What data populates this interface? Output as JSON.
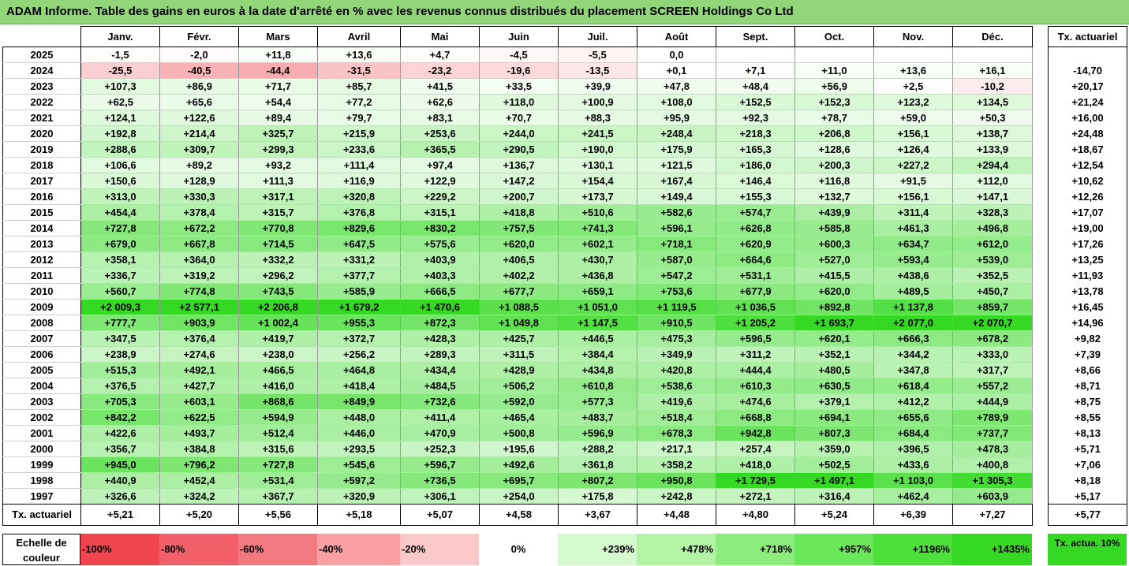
{
  "title": "ADAM Informe. Table des gains en euros à la date d'arrêté en % avec les revenus connus distribués du placement SCREEN Holdings Co Ltd",
  "chart_data": {
    "type": "table",
    "months": [
      "Janv.",
      "Févr.",
      "Mars",
      "Avril",
      "Mai",
      "Juin",
      "Juil.",
      "Août",
      "Sept.",
      "Oct.",
      "Nov.",
      "Déc."
    ],
    "side_header": "Tx. actuariel",
    "rows": [
      {
        "year": "2025",
        "values": [
          "-1,5",
          "-2,0",
          "+11,8",
          "+13,6",
          "+4,7",
          "-4,5",
          "-5,5",
          "0,0",
          "",
          "",
          "",
          ""
        ],
        "rate": ""
      },
      {
        "year": "2024",
        "values": [
          "-25,5",
          "-40,5",
          "-44,4",
          "-31,5",
          "-23,2",
          "-19,6",
          "-13,5",
          "+0,1",
          "+7,1",
          "+11,0",
          "+13,6",
          "+16,1"
        ],
        "rate": "-14,70"
      },
      {
        "year": "2023",
        "values": [
          "+107,3",
          "+86,9",
          "+71,7",
          "+85,7",
          "+41,5",
          "+33,5",
          "+39,9",
          "+47,8",
          "+48,4",
          "+56,9",
          "+2,5",
          "-10,2"
        ],
        "rate": "+20,17"
      },
      {
        "year": "2022",
        "values": [
          "+62,5",
          "+65,6",
          "+54,4",
          "+77,2",
          "+62,6",
          "+118,0",
          "+100,9",
          "+108,0",
          "+152,5",
          "+152,3",
          "+123,2",
          "+134,5"
        ],
        "rate": "+21,24"
      },
      {
        "year": "2021",
        "values": [
          "+124,1",
          "+122,6",
          "+89,4",
          "+79,7",
          "+83,1",
          "+70,7",
          "+88,3",
          "+95,9",
          "+92,3",
          "+78,7",
          "+59,0",
          "+50,3"
        ],
        "rate": "+16,00"
      },
      {
        "year": "2020",
        "values": [
          "+192,8",
          "+214,4",
          "+325,7",
          "+215,9",
          "+253,6",
          "+244,0",
          "+241,5",
          "+248,4",
          "+218,3",
          "+206,8",
          "+156,1",
          "+138,7"
        ],
        "rate": "+24,48"
      },
      {
        "year": "2019",
        "values": [
          "+288,6",
          "+309,7",
          "+299,3",
          "+233,6",
          "+365,5",
          "+290,5",
          "+190,0",
          "+175,9",
          "+165,3",
          "+128,6",
          "+126,4",
          "+133,9"
        ],
        "rate": "+18,67"
      },
      {
        "year": "2018",
        "values": [
          "+106,6",
          "+89,2",
          "+93,2",
          "+111,4",
          "+97,4",
          "+136,7",
          "+130,1",
          "+121,5",
          "+186,0",
          "+200,3",
          "+227,2",
          "+294,4"
        ],
        "rate": "+12,54"
      },
      {
        "year": "2017",
        "values": [
          "+150,6",
          "+128,9",
          "+111,3",
          "+116,9",
          "+122,9",
          "+147,2",
          "+154,4",
          "+167,4",
          "+146,4",
          "+116,8",
          "+91,5",
          "+112,0"
        ],
        "rate": "+10,62"
      },
      {
        "year": "2016",
        "values": [
          "+313,0",
          "+330,3",
          "+317,1",
          "+320,8",
          "+229,2",
          "+200,7",
          "+173,7",
          "+149,4",
          "+155,3",
          "+132,7",
          "+156,1",
          "+147,1"
        ],
        "rate": "+12,26"
      },
      {
        "year": "2015",
        "values": [
          "+454,4",
          "+378,4",
          "+315,7",
          "+376,8",
          "+315,1",
          "+418,8",
          "+510,6",
          "+582,6",
          "+574,7",
          "+439,9",
          "+311,4",
          "+328,3"
        ],
        "rate": "+17,07"
      },
      {
        "year": "2014",
        "values": [
          "+727,8",
          "+672,2",
          "+770,8",
          "+829,6",
          "+830,2",
          "+757,5",
          "+741,3",
          "+596,1",
          "+626,8",
          "+585,8",
          "+461,3",
          "+496,8"
        ],
        "rate": "+19,00"
      },
      {
        "year": "2013",
        "values": [
          "+679,0",
          "+667,8",
          "+714,5",
          "+647,5",
          "+575,6",
          "+620,0",
          "+602,1",
          "+718,1",
          "+620,9",
          "+600,3",
          "+634,7",
          "+612,0"
        ],
        "rate": "+17,26"
      },
      {
        "year": "2012",
        "values": [
          "+358,1",
          "+364,0",
          "+332,2",
          "+331,2",
          "+403,9",
          "+406,5",
          "+430,7",
          "+587,0",
          "+664,6",
          "+527,0",
          "+593,4",
          "+539,0"
        ],
        "rate": "+13,25"
      },
      {
        "year": "2011",
        "values": [
          "+336,7",
          "+319,2",
          "+296,2",
          "+377,7",
          "+403,3",
          "+402,2",
          "+436,8",
          "+547,2",
          "+531,1",
          "+415,5",
          "+438,6",
          "+352,5"
        ],
        "rate": "+11,93"
      },
      {
        "year": "2010",
        "values": [
          "+560,7",
          "+774,8",
          "+743,5",
          "+585,9",
          "+666,5",
          "+677,7",
          "+659,1",
          "+753,6",
          "+677,9",
          "+620,0",
          "+489,5",
          "+450,7"
        ],
        "rate": "+13,78"
      },
      {
        "year": "2009",
        "values": [
          "+2 009,3",
          "+2 577,1",
          "+2 206,8",
          "+1 679,2",
          "+1 470,6",
          "+1 088,5",
          "+1 051,0",
          "+1 119,5",
          "+1 036,5",
          "+892,8",
          "+1 137,8",
          "+859,7"
        ],
        "rate": "+16,45"
      },
      {
        "year": "2008",
        "values": [
          "+777,7",
          "+903,9",
          "+1 002,4",
          "+955,3",
          "+872,3",
          "+1 049,8",
          "+1 147,5",
          "+910,5",
          "+1 205,2",
          "+1 693,7",
          "+2 077,0",
          "+2 070,7"
        ],
        "rate": "+14,96"
      },
      {
        "year": "2007",
        "values": [
          "+347,5",
          "+376,4",
          "+419,7",
          "+372,7",
          "+428,3",
          "+425,7",
          "+446,5",
          "+475,3",
          "+596,5",
          "+620,1",
          "+666,3",
          "+678,2"
        ],
        "rate": "+9,82"
      },
      {
        "year": "2006",
        "values": [
          "+238,9",
          "+274,6",
          "+238,0",
          "+256,2",
          "+289,3",
          "+311,5",
          "+384,4",
          "+349,9",
          "+311,2",
          "+352,1",
          "+344,2",
          "+333,0"
        ],
        "rate": "+7,39"
      },
      {
        "year": "2005",
        "values": [
          "+515,3",
          "+492,1",
          "+466,5",
          "+464,8",
          "+434,4",
          "+428,9",
          "+434,8",
          "+420,8",
          "+444,4",
          "+480,5",
          "+347,8",
          "+317,7"
        ],
        "rate": "+8,66"
      },
      {
        "year": "2004",
        "values": [
          "+376,5",
          "+427,7",
          "+416,0",
          "+418,4",
          "+484,5",
          "+506,2",
          "+610,8",
          "+538,6",
          "+610,3",
          "+630,5",
          "+618,4",
          "+557,2"
        ],
        "rate": "+8,71"
      },
      {
        "year": "2003",
        "values": [
          "+705,3",
          "+603,1",
          "+868,6",
          "+849,9",
          "+732,6",
          "+592,0",
          "+577,3",
          "+419,6",
          "+474,6",
          "+379,1",
          "+412,2",
          "+444,9"
        ],
        "rate": "+8,75"
      },
      {
        "year": "2002",
        "values": [
          "+842,2",
          "+622,5",
          "+594,9",
          "+448,0",
          "+411,4",
          "+465,4",
          "+483,7",
          "+518,4",
          "+668,8",
          "+694,1",
          "+655,6",
          "+789,9"
        ],
        "rate": "+8,55"
      },
      {
        "year": "2001",
        "values": [
          "+422,6",
          "+493,7",
          "+512,4",
          "+446,0",
          "+470,9",
          "+500,8",
          "+596,9",
          "+678,3",
          "+942,8",
          "+807,3",
          "+684,4",
          "+737,7"
        ],
        "rate": "+8,13"
      },
      {
        "year": "2000",
        "values": [
          "+356,7",
          "+384,8",
          "+315,6",
          "+293,5",
          "+252,3",
          "+195,6",
          "+288,2",
          "+217,1",
          "+257,4",
          "+359,0",
          "+396,5",
          "+478,3"
        ],
        "rate": "+5,71"
      },
      {
        "year": "1999",
        "values": [
          "+945,0",
          "+796,2",
          "+727,8",
          "+545,6",
          "+596,7",
          "+492,6",
          "+361,8",
          "+358,2",
          "+418,0",
          "+502,5",
          "+433,6",
          "+400,8"
        ],
        "rate": "+7,06"
      },
      {
        "year": "1998",
        "values": [
          "+440,9",
          "+452,4",
          "+531,4",
          "+597,2",
          "+736,5",
          "+695,7",
          "+807,2",
          "+950,8",
          "+1 729,5",
          "+1 497,1",
          "+1 103,0",
          "+1 305,3"
        ],
        "rate": "+8,18"
      },
      {
        "year": "1997",
        "values": [
          "+326,6",
          "+324,2",
          "+367,7",
          "+320,9",
          "+306,1",
          "+254,0",
          "+175,8",
          "+242,8",
          "+272,1",
          "+316,4",
          "+462,4",
          "+603,9"
        ],
        "rate": "+5,17"
      }
    ],
    "summary": {
      "label": "Tx. actuariel",
      "values": [
        "+5,21",
        "+5,20",
        "+5,56",
        "+5,18",
        "+5,07",
        "+4,58",
        "+3,67",
        "+4,48",
        "+4,80",
        "+5,24",
        "+6,39",
        "+7,27"
      ],
      "rate": "+5,77"
    },
    "scale": {
      "label": "Echelle de couleur",
      "steps": [
        {
          "text": "-100%",
          "color": "#f0444e",
          "align": "left"
        },
        {
          "text": "-80%",
          "color": "#f2606a",
          "align": "left"
        },
        {
          "text": "-60%",
          "color": "#f4787f",
          "align": "left"
        },
        {
          "text": "-40%",
          "color": "#f8a0a4",
          "align": "left"
        },
        {
          "text": "-20%",
          "color": "#fbc8ca",
          "align": "left"
        },
        {
          "text": "0%",
          "color": "#ffffff",
          "align": "center"
        },
        {
          "text": "+239%",
          "color": "#d6fad0",
          "align": "right"
        },
        {
          "text": "+478%",
          "color": "#b2f3a4",
          "align": "right"
        },
        {
          "text": "+718%",
          "color": "#8ced7c",
          "align": "right"
        },
        {
          "text": "+957%",
          "color": "#6ae859",
          "align": "right"
        },
        {
          "text": "+1196%",
          "color": "#4de03a",
          "align": "right"
        },
        {
          "text": "+1435%",
          "color": "#35d923",
          "align": "right"
        }
      ],
      "side_text": "Tx. actua. 10%",
      "side_color": "#35d923"
    }
  }
}
